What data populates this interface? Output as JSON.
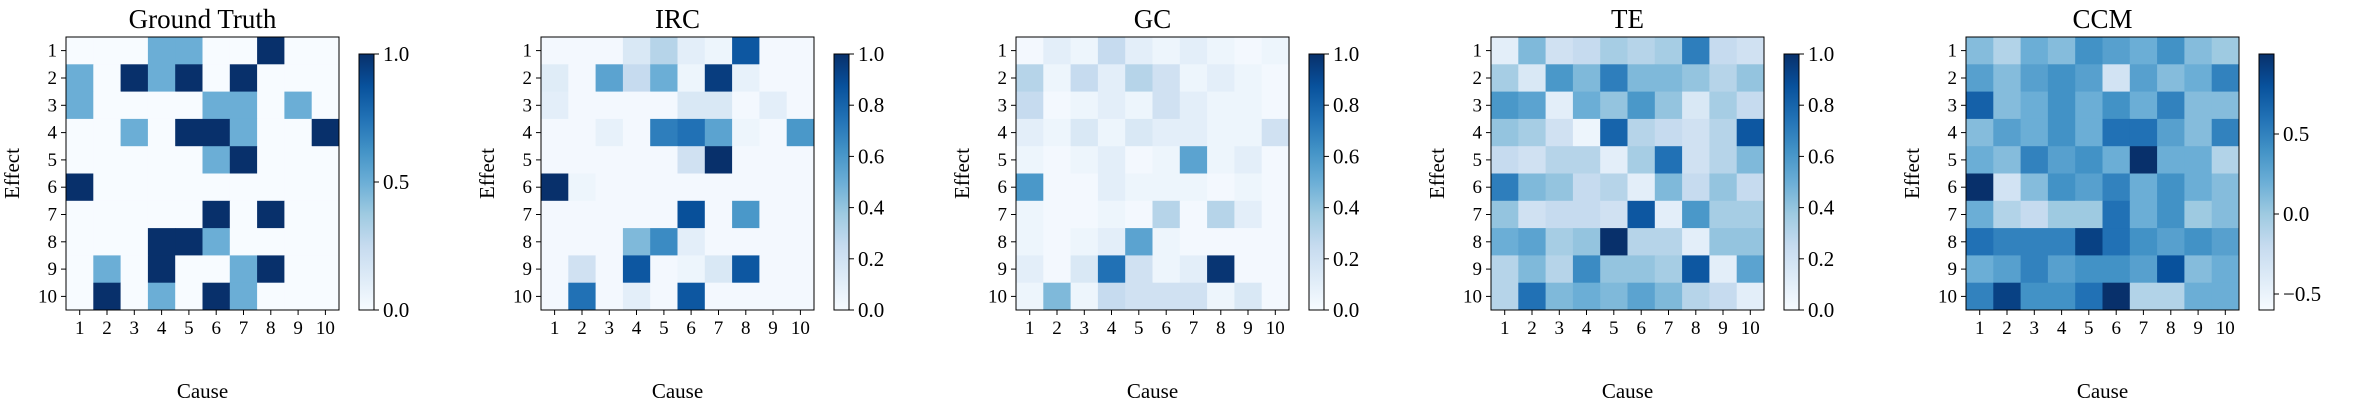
{
  "figure": {
    "shared_xlabel": "Cause",
    "shared_ylabel": "Effect",
    "colormap": [
      "#f7fbff",
      "#deebf7",
      "#c6dbef",
      "#9ecae1",
      "#6baed6",
      "#4292c6",
      "#2171b5",
      "#08519c",
      "#08306b"
    ]
  },
  "chart_data": [
    {
      "type": "heatmap",
      "title": "Ground Truth",
      "xlabel": "Cause",
      "ylabel": "Effect",
      "x_ticks": [
        "1",
        "2",
        "3",
        "4",
        "5",
        "6",
        "7",
        "8",
        "9",
        "10"
      ],
      "y_ticks": [
        "1",
        "2",
        "3",
        "4",
        "5",
        "6",
        "7",
        "8",
        "9",
        "10"
      ],
      "vmin": 0,
      "vmax": 1,
      "colorbar_ticks": [
        0.0,
        0.5,
        1.0
      ],
      "colorbar_labels": [
        "0.0",
        "0.5",
        "1.0"
      ],
      "matrix": [
        [
          0,
          0,
          0,
          0.5,
          0.5,
          0,
          0,
          1,
          0,
          0
        ],
        [
          0.5,
          0,
          1,
          0.5,
          1,
          0,
          1,
          0,
          0,
          0
        ],
        [
          0.5,
          0,
          0,
          0,
          0,
          0.5,
          0.5,
          0,
          0.5,
          0
        ],
        [
          0,
          0,
          0.5,
          0,
          1,
          1,
          0.5,
          0,
          0,
          1
        ],
        [
          0,
          0,
          0,
          0,
          0,
          0.5,
          1,
          0,
          0,
          0
        ],
        [
          1,
          0,
          0,
          0,
          0,
          0,
          0,
          0,
          0,
          0
        ],
        [
          0,
          0,
          0,
          0,
          0,
          1,
          0,
          1,
          0,
          0
        ],
        [
          0,
          0,
          0,
          1,
          1,
          0.5,
          0,
          0,
          0,
          0
        ],
        [
          0,
          0.5,
          0,
          1,
          0,
          0,
          0.5,
          1,
          0,
          0
        ],
        [
          0,
          1,
          0,
          0.5,
          0,
          1,
          0.5,
          0,
          0,
          0
        ]
      ]
    },
    {
      "type": "heatmap",
      "title": "IRC",
      "xlabel": "Cause",
      "ylabel": "Effect",
      "x_ticks": [
        "1",
        "2",
        "3",
        "4",
        "5",
        "6",
        "7",
        "8",
        "9",
        "10"
      ],
      "y_ticks": [
        "1",
        "2",
        "3",
        "4",
        "5",
        "6",
        "7",
        "8",
        "9",
        "10"
      ],
      "vmin": 0,
      "vmax": 1,
      "colorbar_ticks": [
        0.0,
        0.2,
        0.4,
        0.6,
        0.8,
        1.0
      ],
      "colorbar_labels": [
        "0.0",
        "0.2",
        "0.4",
        "0.6",
        "0.8",
        "1.0"
      ],
      "matrix": [
        [
          0.02,
          0.02,
          0.02,
          0.15,
          0.3,
          0.1,
          0.05,
          0.85,
          0.02,
          0.02
        ],
        [
          0.12,
          0.02,
          0.55,
          0.25,
          0.5,
          0.05,
          0.95,
          0.08,
          0.02,
          0.02
        ],
        [
          0.1,
          0.02,
          0.02,
          0.02,
          0.02,
          0.15,
          0.15,
          0.02,
          0.1,
          0.02
        ],
        [
          0.02,
          0.02,
          0.08,
          0.02,
          0.7,
          0.75,
          0.55,
          0.05,
          0.02,
          0.6
        ],
        [
          0.02,
          0.02,
          0.02,
          0.02,
          0.02,
          0.2,
          1.0,
          0.02,
          0.02,
          0.02
        ],
        [
          1.0,
          0.05,
          0.02,
          0.02,
          0.02,
          0.02,
          0.02,
          0.02,
          0.02,
          0.02
        ],
        [
          0.02,
          0.02,
          0.02,
          0.02,
          0.02,
          0.88,
          0.02,
          0.6,
          0.02,
          0.02
        ],
        [
          0.02,
          0.02,
          0.02,
          0.45,
          0.65,
          0.1,
          0.02,
          0.02,
          0.02,
          0.02
        ],
        [
          0.02,
          0.2,
          0.02,
          0.85,
          0.02,
          0.05,
          0.15,
          0.85,
          0.02,
          0.02
        ],
        [
          0.02,
          0.75,
          0.02,
          0.1,
          0.02,
          0.85,
          0.02,
          0.02,
          0.02,
          0.02
        ]
      ]
    },
    {
      "type": "heatmap",
      "title": "GC",
      "xlabel": "Cause",
      "ylabel": "Effect",
      "x_ticks": [
        "1",
        "2",
        "3",
        "4",
        "5",
        "6",
        "7",
        "8",
        "9",
        "10"
      ],
      "y_ticks": [
        "1",
        "2",
        "3",
        "4",
        "5",
        "6",
        "7",
        "8",
        "9",
        "10"
      ],
      "vmin": 0,
      "vmax": 1,
      "colorbar_ticks": [
        0.0,
        0.2,
        0.4,
        0.6,
        0.8,
        1.0
      ],
      "colorbar_labels": [
        "0.0",
        "0.2",
        "0.4",
        "0.6",
        "0.8",
        "1.0"
      ],
      "matrix": [
        [
          0.02,
          0.1,
          0.05,
          0.25,
          0.1,
          0.05,
          0.1,
          0.05,
          0.02,
          0.05
        ],
        [
          0.3,
          0.05,
          0.25,
          0.1,
          0.3,
          0.2,
          0.05,
          0.1,
          0.05,
          0.02
        ],
        [
          0.25,
          0.02,
          0.05,
          0.1,
          0.05,
          0.2,
          0.1,
          0.05,
          0.05,
          0.02
        ],
        [
          0.1,
          0.05,
          0.15,
          0.05,
          0.15,
          0.1,
          0.1,
          0.05,
          0.05,
          0.2
        ],
        [
          0.05,
          0.02,
          0.05,
          0.1,
          0.02,
          0.05,
          0.55,
          0.05,
          0.1,
          0.02
        ],
        [
          0.6,
          0.02,
          0.02,
          0.1,
          0.05,
          0.05,
          0.05,
          0.02,
          0.05,
          0.02
        ],
        [
          0.05,
          0.02,
          0.02,
          0.05,
          0.02,
          0.3,
          0.02,
          0.3,
          0.1,
          0.02
        ],
        [
          0.05,
          0.02,
          0.05,
          0.1,
          0.55,
          0.05,
          0.02,
          0.02,
          0.02,
          0.02
        ],
        [
          0.1,
          0.02,
          0.15,
          0.75,
          0.2,
          0.05,
          0.1,
          0.98,
          0.02,
          0.02
        ],
        [
          0.05,
          0.45,
          0.05,
          0.25,
          0.2,
          0.2,
          0.2,
          0.05,
          0.15,
          0.02
        ]
      ]
    },
    {
      "type": "heatmap",
      "title": "TE",
      "xlabel": "Cause",
      "ylabel": "Effect",
      "x_ticks": [
        "1",
        "2",
        "3",
        "4",
        "5",
        "6",
        "7",
        "8",
        "9",
        "10"
      ],
      "y_ticks": [
        "1",
        "2",
        "3",
        "4",
        "5",
        "6",
        "7",
        "8",
        "9",
        "10"
      ],
      "vmin": 0,
      "vmax": 1,
      "colorbar_ticks": [
        0.0,
        0.2,
        0.4,
        0.6,
        0.8,
        1.0
      ],
      "colorbar_labels": [
        "0.0",
        "0.2",
        "0.4",
        "0.6",
        "0.8",
        "1.0"
      ],
      "matrix": [
        [
          0.1,
          0.45,
          0.2,
          0.25,
          0.35,
          0.3,
          0.35,
          0.7,
          0.25,
          0.2
        ],
        [
          0.35,
          0.15,
          0.6,
          0.45,
          0.7,
          0.45,
          0.45,
          0.4,
          0.3,
          0.4
        ],
        [
          0.6,
          0.55,
          0.1,
          0.5,
          0.4,
          0.6,
          0.4,
          0.15,
          0.35,
          0.25
        ],
        [
          0.4,
          0.35,
          0.2,
          0.05,
          0.8,
          0.3,
          0.25,
          0.2,
          0.3,
          0.85
        ],
        [
          0.25,
          0.2,
          0.3,
          0.3,
          0.1,
          0.35,
          0.75,
          0.2,
          0.3,
          0.45
        ],
        [
          0.7,
          0.45,
          0.4,
          0.25,
          0.3,
          0.1,
          0.45,
          0.25,
          0.4,
          0.25
        ],
        [
          0.4,
          0.2,
          0.25,
          0.25,
          0.2,
          0.85,
          0.1,
          0.6,
          0.35,
          0.35
        ],
        [
          0.5,
          0.55,
          0.35,
          0.4,
          1.0,
          0.3,
          0.3,
          0.1,
          0.4,
          0.4
        ],
        [
          0.3,
          0.45,
          0.3,
          0.65,
          0.4,
          0.4,
          0.35,
          0.85,
          0.1,
          0.55
        ],
        [
          0.3,
          0.75,
          0.45,
          0.5,
          0.45,
          0.55,
          0.45,
          0.3,
          0.25,
          0.1
        ]
      ]
    },
    {
      "type": "heatmap",
      "title": "CCM",
      "xlabel": "Cause",
      "ylabel": "Effect",
      "x_ticks": [
        "1",
        "2",
        "3",
        "4",
        "5",
        "6",
        "7",
        "8",
        "9",
        "10"
      ],
      "y_ticks": [
        "1",
        "2",
        "3",
        "4",
        "5",
        "6",
        "7",
        "8",
        "9",
        "10"
      ],
      "vmin": -0.6,
      "vmax": 1.0,
      "colorbar_ticks": [
        -0.5,
        0.0,
        0.5
      ],
      "colorbar_labels": [
        "−0.5",
        "0.0",
        "0.5"
      ],
      "matrix": [
        [
          0.1,
          -0.1,
          0.2,
          0.1,
          0.4,
          0.3,
          0.2,
          0.4,
          0.1,
          0.0
        ],
        [
          0.3,
          0.1,
          0.3,
          0.4,
          0.3,
          -0.3,
          0.3,
          0.1,
          0.2,
          0.5
        ],
        [
          0.7,
          0.1,
          0.2,
          0.4,
          0.2,
          0.4,
          0.2,
          0.5,
          0.1,
          0.1
        ],
        [
          0.1,
          0.3,
          0.2,
          0.4,
          0.2,
          0.6,
          0.6,
          0.3,
          0.1,
          0.5
        ],
        [
          0.2,
          0.1,
          0.5,
          0.3,
          0.4,
          0.2,
          1.0,
          0.2,
          0.2,
          -0.1
        ],
        [
          1.0,
          -0.3,
          0.1,
          0.4,
          0.3,
          0.5,
          0.2,
          0.4,
          0.2,
          0.1
        ],
        [
          0.2,
          -0.1,
          -0.2,
          0.0,
          0.0,
          0.6,
          0.2,
          0.4,
          0.0,
          0.1
        ],
        [
          0.6,
          0.5,
          0.5,
          0.5,
          0.9,
          0.6,
          0.4,
          0.3,
          0.4,
          0.3
        ],
        [
          0.2,
          0.3,
          0.5,
          0.3,
          0.4,
          0.4,
          0.3,
          0.8,
          0.1,
          0.2
        ],
        [
          0.5,
          0.9,
          0.4,
          0.4,
          0.6,
          1.0,
          -0.1,
          -0.1,
          0.2,
          0.2
        ]
      ]
    }
  ]
}
